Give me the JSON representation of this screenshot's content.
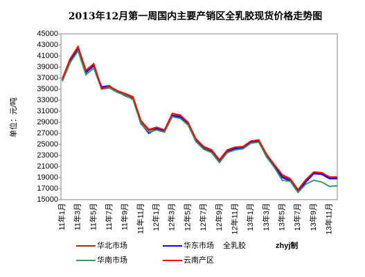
{
  "chart_data": {
    "type": "line",
    "title": "2013年12月第一周国内主要产销区全乳胶现货价格走势图",
    "y_label": "单位：元/吨",
    "annotations": [
      "全乳胶",
      "zhyj制"
    ],
    "categories": [
      "11年1月",
      null,
      "11年3月",
      null,
      "11年5月",
      null,
      "11年7月",
      null,
      "11年9月",
      null,
      "11年11月",
      null,
      "12年1月",
      null,
      "12年3月",
      null,
      "12年5月",
      null,
      "12年7月",
      null,
      "12年9月",
      null,
      "12年11月",
      null,
      "13年1月",
      null,
      "13年3月",
      null,
      "13年5月",
      null,
      "13年7月",
      null,
      "13年9月",
      null,
      "13年11月",
      null
    ],
    "series": [
      {
        "name": "华北市场",
        "color": "#993300",
        "values": [
          36800,
          40300,
          42300,
          38200,
          39300,
          35200,
          35300,
          34600,
          34000,
          33300,
          29200,
          27500,
          27900,
          27400,
          30300,
          30100,
          28800,
          25800,
          24400,
          23800,
          22000,
          23800,
          24300,
          24400,
          25400,
          25600,
          23000,
          21200,
          19200,
          18600,
          16600,
          18300,
          19800,
          19700,
          18900,
          18900
        ]
      },
      {
        "name": "华东市场",
        "color": "#0000ff",
        "values": [
          36600,
          40100,
          42100,
          38000,
          39200,
          35400,
          35600,
          34500,
          33800,
          33200,
          28800,
          27000,
          27800,
          27300,
          30200,
          29900,
          28600,
          25600,
          24200,
          23600,
          21800,
          23600,
          24200,
          24300,
          25300,
          25500,
          22800,
          21000,
          19000,
          18400,
          16400,
          18200,
          19700,
          19600,
          18800,
          18800
        ]
      },
      {
        "name": "华南市场",
        "color": "#339966",
        "values": [
          36400,
          39800,
          41900,
          37600,
          38800,
          35000,
          35200,
          34400,
          33900,
          33100,
          28700,
          27200,
          27600,
          27200,
          30000,
          29700,
          28500,
          25500,
          24100,
          23500,
          21700,
          23500,
          24000,
          24200,
          25200,
          25400,
          22700,
          20800,
          18500,
          18300,
          16300,
          17800,
          18500,
          18200,
          17400,
          17500
        ]
      },
      {
        "name": "云南产区",
        "color": "#ff0000",
        "values": [
          36900,
          40500,
          42700,
          38400,
          39600,
          35100,
          35500,
          34700,
          34200,
          33600,
          29300,
          27700,
          28100,
          27600,
          30600,
          30300,
          29000,
          26000,
          24600,
          24000,
          22200,
          24000,
          24500,
          24600,
          25600,
          25800,
          23200,
          21300,
          19500,
          18800,
          16800,
          18600,
          20000,
          19900,
          19100,
          19100
        ]
      }
    ],
    "ylim": [
      15000,
      45000
    ],
    "yticks": [
      15000,
      17000,
      19000,
      21000,
      23000,
      25000,
      27000,
      29000,
      31000,
      33000,
      35000,
      37000,
      39000,
      41000,
      43000,
      45000
    ]
  }
}
